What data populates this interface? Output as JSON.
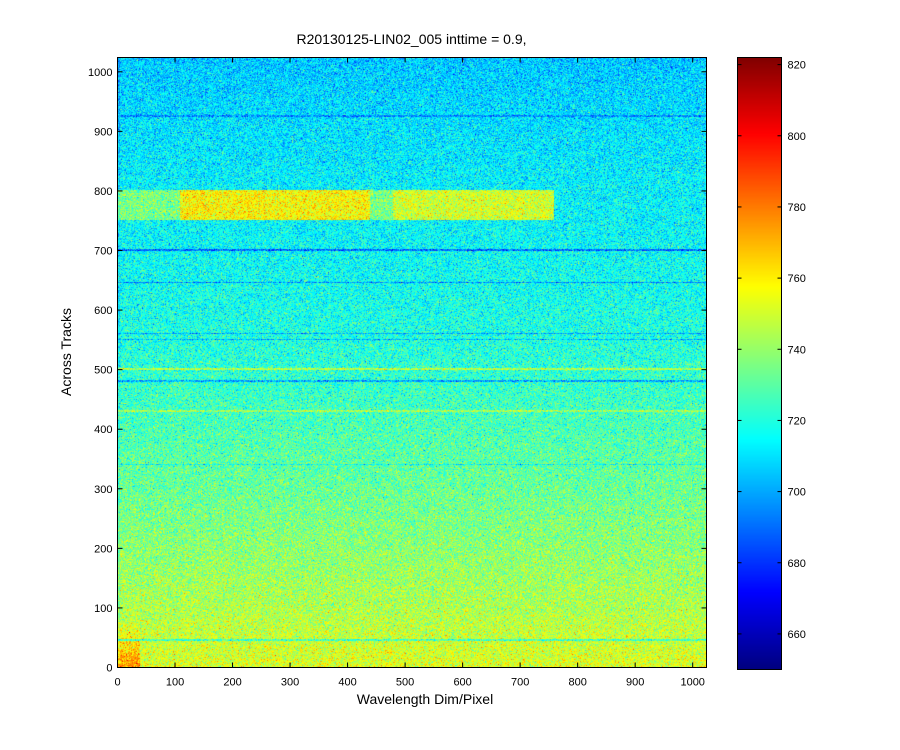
{
  "chart_data": {
    "type": "heatmap",
    "title": "R20130125-LIN02_005 inttime = 0.9,",
    "xlabel": "Wavelength Dim/Pixel",
    "ylabel": "Across Tracks",
    "xlim": [
      0,
      1024
    ],
    "ylim": [
      0,
      1024
    ],
    "x_ticks": [
      0,
      100,
      200,
      300,
      400,
      500,
      600,
      700,
      800,
      900,
      1000
    ],
    "y_ticks": [
      0,
      100,
      200,
      300,
      400,
      500,
      600,
      700,
      800,
      900,
      1000
    ],
    "colorbar": {
      "colormap": "jet",
      "clim": [
        650,
        822
      ],
      "ticks": [
        660,
        680,
        700,
        720,
        740,
        760,
        780,
        800,
        820
      ],
      "placement": "right"
    },
    "value_profile": {
      "description_rows": [
        {
          "across_track": 0,
          "mean": 752
        },
        {
          "across_track": 100,
          "mean": 744
        },
        {
          "across_track": 200,
          "mean": 738
        },
        {
          "across_track": 300,
          "mean": 732
        },
        {
          "across_track": 400,
          "mean": 727
        },
        {
          "across_track": 500,
          "mean": 722
        },
        {
          "across_track": 600,
          "mean": 718
        },
        {
          "across_track": 700,
          "mean": 715
        },
        {
          "across_track": 800,
          "mean": 713
        },
        {
          "across_track": 900,
          "mean": 710
        },
        {
          "across_track": 1024,
          "mean": 705
        }
      ],
      "noise_std": 10
    },
    "features": [
      {
        "kind": "band",
        "across_track": [
          750,
          800
        ],
        "wavelength": [
          110,
          440
        ],
        "mean": 758
      },
      {
        "kind": "band",
        "across_track": [
          750,
          800
        ],
        "wavelength": [
          480,
          760
        ],
        "mean": 750
      },
      {
        "kind": "band",
        "across_track": [
          750,
          800
        ],
        "wavelength": [
          0,
          110
        ],
        "mean": 735
      },
      {
        "kind": "band",
        "across_track": [
          750,
          800
        ],
        "wavelength": [
          440,
          480
        ],
        "mean": 735
      },
      {
        "kind": "line",
        "across_track": 925,
        "mean": 695
      },
      {
        "kind": "line",
        "across_track": 700,
        "mean": 690
      },
      {
        "kind": "line",
        "across_track": 645,
        "mean": 695
      },
      {
        "kind": "line",
        "across_track": 560,
        "mean": 700
      },
      {
        "kind": "line",
        "across_track": 550,
        "mean": 702
      },
      {
        "kind": "line",
        "across_track": 480,
        "mean": 700
      },
      {
        "kind": "line",
        "across_track": 500,
        "mean": 745
      },
      {
        "kind": "line",
        "across_track": 430,
        "mean": 742
      },
      {
        "kind": "line",
        "across_track": 340,
        "mean": 715
      },
      {
        "kind": "line",
        "across_track": 45,
        "mean": 725
      },
      {
        "kind": "corner",
        "across_track": [
          0,
          80
        ],
        "wavelength": [
          0,
          40
        ],
        "mean": 775
      }
    ]
  }
}
